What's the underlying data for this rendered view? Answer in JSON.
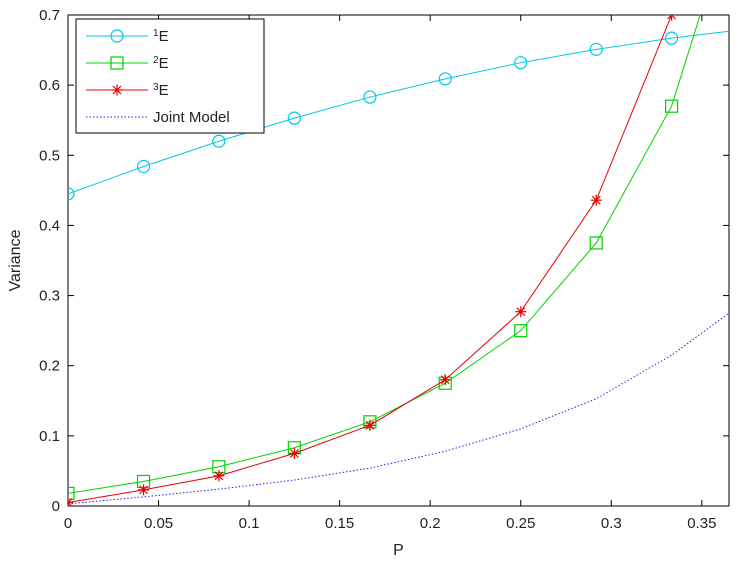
{
  "chart_data": {
    "type": "line",
    "xlabel": "P",
    "ylabel": "Variance",
    "xlim": [
      0,
      0.365
    ],
    "ylim": [
      0,
      0.7
    ],
    "xticks": [
      0,
      0.05,
      0.1,
      0.15,
      0.2,
      0.25,
      0.3,
      0.35
    ],
    "xtick_labels": [
      "0",
      "0.05",
      "0.1",
      "0.15",
      "0.2",
      "0.25",
      "0.3",
      "0.35"
    ],
    "yticks": [
      0,
      0.1,
      0.2,
      0.3,
      0.4,
      0.5,
      0.6,
      0.7
    ],
    "ytick_labels": [
      "0",
      "0.1",
      "0.2",
      "0.3",
      "0.4",
      "0.5",
      "0.6",
      "0.7"
    ],
    "grid": false,
    "legend_position": "top-left",
    "series": [
      {
        "name": "E",
        "name_superscript": "1",
        "color": "#00c8e6",
        "marker": "circle",
        "line_style": "solid",
        "x": [
          0,
          0.0417,
          0.0833,
          0.125,
          0.1667,
          0.2083,
          0.25,
          0.2917,
          0.3333,
          0.375
        ],
        "y": [
          0.445,
          0.484,
          0.52,
          0.553,
          0.583,
          0.609,
          0.632,
          0.651,
          0.667,
          0.68
        ]
      },
      {
        "name": "E",
        "name_superscript": "2",
        "color": "#00d200",
        "marker": "square",
        "line_style": "solid",
        "x": [
          0,
          0.0417,
          0.0833,
          0.125,
          0.1667,
          0.2083,
          0.25,
          0.2917,
          0.3333,
          0.36
        ],
        "y": [
          0.018,
          0.035,
          0.056,
          0.083,
          0.12,
          0.175,
          0.25,
          0.375,
          0.57,
          0.79
        ]
      },
      {
        "name": "E",
        "name_superscript": "3",
        "color": "#e60000",
        "marker": "star",
        "line_style": "solid",
        "x": [
          0,
          0.0417,
          0.0833,
          0.125,
          0.1667,
          0.2083,
          0.25,
          0.2917,
          0.3333,
          0.345
        ],
        "y": [
          0.005,
          0.023,
          0.043,
          0.075,
          0.115,
          0.18,
          0.277,
          0.436,
          0.7,
          0.8
        ]
      },
      {
        "name": "Joint Model",
        "color": "#2020e0",
        "marker": "none",
        "line_style": "dotted",
        "x": [
          0,
          0.0417,
          0.0833,
          0.125,
          0.1667,
          0.2083,
          0.25,
          0.2917,
          0.3333,
          0.365
        ],
        "y": [
          0.003,
          0.013,
          0.024,
          0.037,
          0.054,
          0.078,
          0.11,
          0.153,
          0.215,
          0.275
        ]
      }
    ]
  }
}
